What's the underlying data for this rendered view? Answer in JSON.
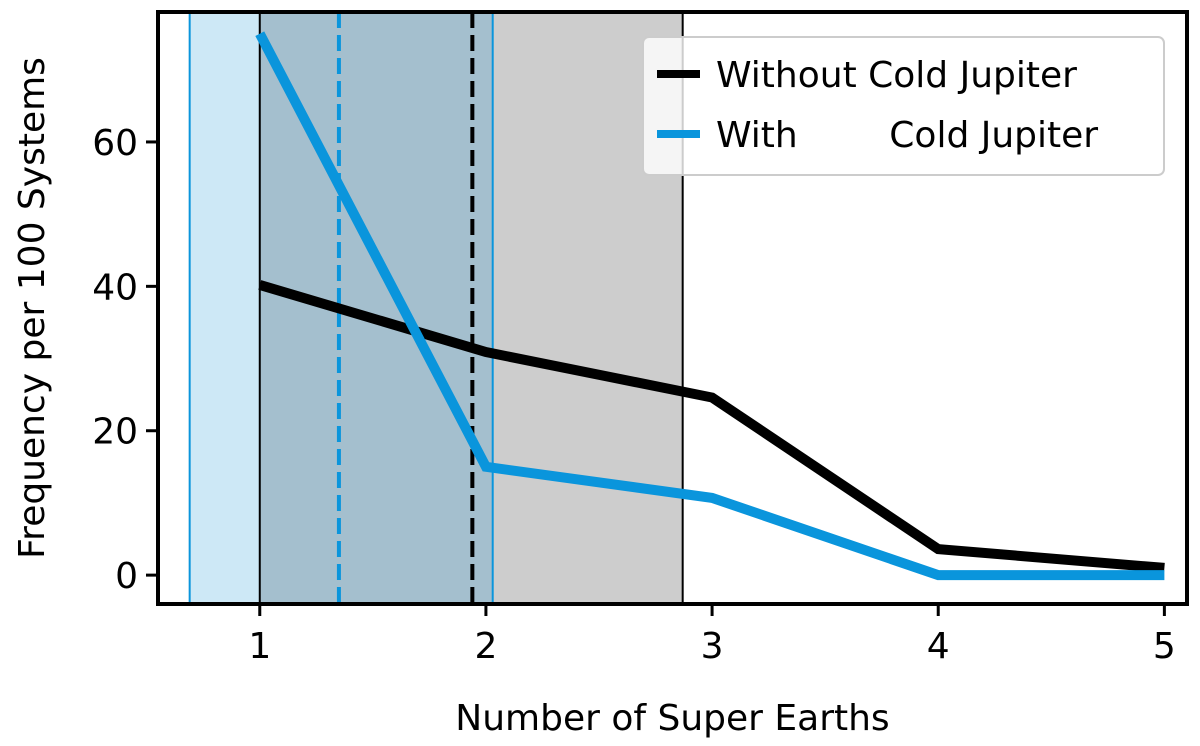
{
  "chart_data": {
    "type": "line",
    "title": "",
    "xlabel": "Number of Super Earths",
    "ylabel": "Frequency per 100 Systems",
    "xlim": [
      0.55,
      5.1
    ],
    "ylim": [
      -4,
      78
    ],
    "xticks": [
      1,
      2,
      3,
      4,
      5
    ],
    "yticks": [
      0,
      20,
      40,
      60
    ],
    "grid": false,
    "legend_position": "top-right",
    "series": [
      {
        "name": "Without Cold Jupiter",
        "color": "#000000",
        "x": [
          1,
          2,
          3,
          4,
          5
        ],
        "y": [
          40.2,
          30.9,
          24.6,
          3.6,
          1.0
        ]
      },
      {
        "name": "With        Cold Jupiter",
        "color": "#0a95dc",
        "x": [
          1,
          2,
          3,
          4,
          5
        ],
        "y": [
          75,
          15,
          10.7,
          0,
          0
        ]
      }
    ],
    "bands": [
      {
        "series": "With        Cold Jupiter",
        "lo": 0.69,
        "hi": 2.03,
        "mean": 1.35,
        "fill": "#c8e5f5",
        "line": "#0a95dc"
      },
      {
        "series": "Without Cold Jupiter",
        "lo": 1.0,
        "hi": 2.87,
        "mean": 1.94,
        "fill": "#c8c8c8",
        "line": "#000000"
      }
    ]
  }
}
